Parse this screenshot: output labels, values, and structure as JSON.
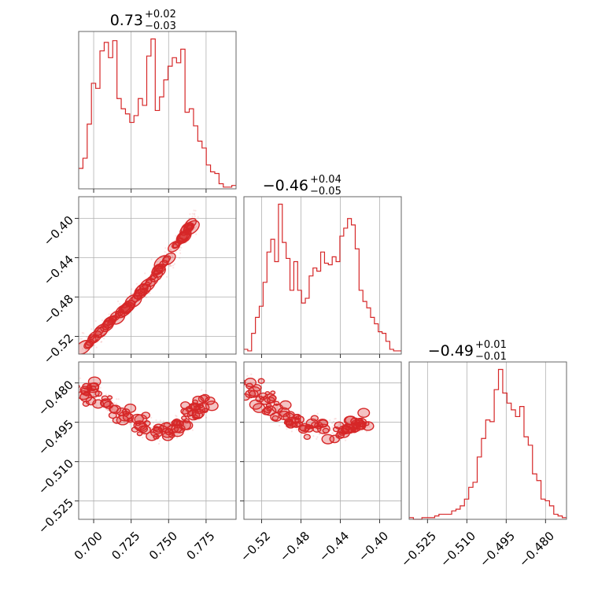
{
  "chart_data": {
    "type": "corner",
    "color": "#d62728",
    "parameters": [
      {
        "title_value": "0.73",
        "upper": "+0.02",
        "lower": "−0.03",
        "range": [
          0.69,
          0.795
        ],
        "ticks": [
          0.7,
          0.725,
          0.75,
          0.775
        ],
        "tick_labels": [
          "0.700",
          "0.725",
          "0.750",
          "0.775"
        ]
      },
      {
        "title_value": "−0.46",
        "upper": "+0.04",
        "lower": "−0.05",
        "range": [
          -0.538,
          -0.378
        ],
        "ticks": [
          -0.52,
          -0.48,
          -0.44,
          -0.4
        ],
        "tick_labels": [
          "−0.52",
          "−0.48",
          "−0.44",
          "−0.40"
        ]
      },
      {
        "title_value": "−0.49",
        "upper": "+0.01",
        "lower": "−0.01",
        "range": [
          -0.532,
          -0.472
        ],
        "ticks": [
          -0.525,
          -0.51,
          -0.495,
          -0.48
        ],
        "tick_labels": [
          "−0.525",
          "−0.510",
          "−0.495",
          "−0.480"
        ]
      }
    ],
    "histograms": [
      {
        "param": 0,
        "counts": [
          12,
          18,
          38,
          62,
          59,
          81,
          86,
          77,
          87,
          53,
          47,
          44,
          39,
          43,
          53,
          49,
          78,
          88,
          46,
          54,
          64,
          72,
          77,
          74,
          82,
          45,
          47,
          37,
          28,
          24,
          14,
          10,
          9,
          3,
          1,
          1,
          2
        ]
      },
      {
        "param": 1,
        "counts": [
          3,
          2,
          13,
          23,
          30,
          45,
          64,
          72,
          58,
          94,
          70,
          60,
          40,
          58,
          40,
          32,
          35,
          49,
          54,
          52,
          64,
          57,
          56,
          61,
          58,
          74,
          79,
          85,
          81,
          66,
          40,
          33,
          29,
          23,
          19,
          14,
          13,
          8,
          3,
          2,
          2
        ]
      },
      {
        "param": 2,
        "counts": [
          1,
          0,
          0,
          1,
          1,
          1,
          2,
          3,
          3,
          3,
          5,
          6,
          8,
          12,
          19,
          22,
          37,
          48,
          59,
          58,
          77,
          89,
          75,
          69,
          65,
          61,
          67,
          49,
          44,
          27,
          23,
          12,
          11,
          8,
          3,
          2,
          1
        ]
      }
    ],
    "joint_ridges": [
      {
        "x_param": 0,
        "y_param": 1,
        "points": [
          [
            0.692,
            -0.532
          ],
          [
            0.705,
            -0.515
          ],
          [
            0.72,
            -0.493
          ],
          [
            0.735,
            -0.47
          ],
          [
            0.75,
            -0.44
          ],
          [
            0.76,
            -0.418
          ],
          [
            0.768,
            -0.398
          ]
        ]
      },
      {
        "x_param": 0,
        "y_param": 2,
        "points": [
          [
            0.692,
            -0.481
          ],
          [
            0.7,
            -0.485
          ],
          [
            0.712,
            -0.489
          ],
          [
            0.725,
            -0.493
          ],
          [
            0.738,
            -0.497
          ],
          [
            0.748,
            -0.498
          ],
          [
            0.758,
            -0.496
          ],
          [
            0.768,
            -0.491
          ],
          [
            0.774,
            -0.485
          ]
        ]
      },
      {
        "x_param": 1,
        "y_param": 2,
        "points": [
          [
            -0.535,
            -0.48
          ],
          [
            -0.52,
            -0.485
          ],
          [
            -0.505,
            -0.49
          ],
          [
            -0.49,
            -0.494
          ],
          [
            -0.47,
            -0.497
          ],
          [
            -0.45,
            -0.498
          ],
          [
            -0.43,
            -0.497
          ],
          [
            -0.412,
            -0.495
          ]
        ]
      }
    ],
    "grid": true
  }
}
